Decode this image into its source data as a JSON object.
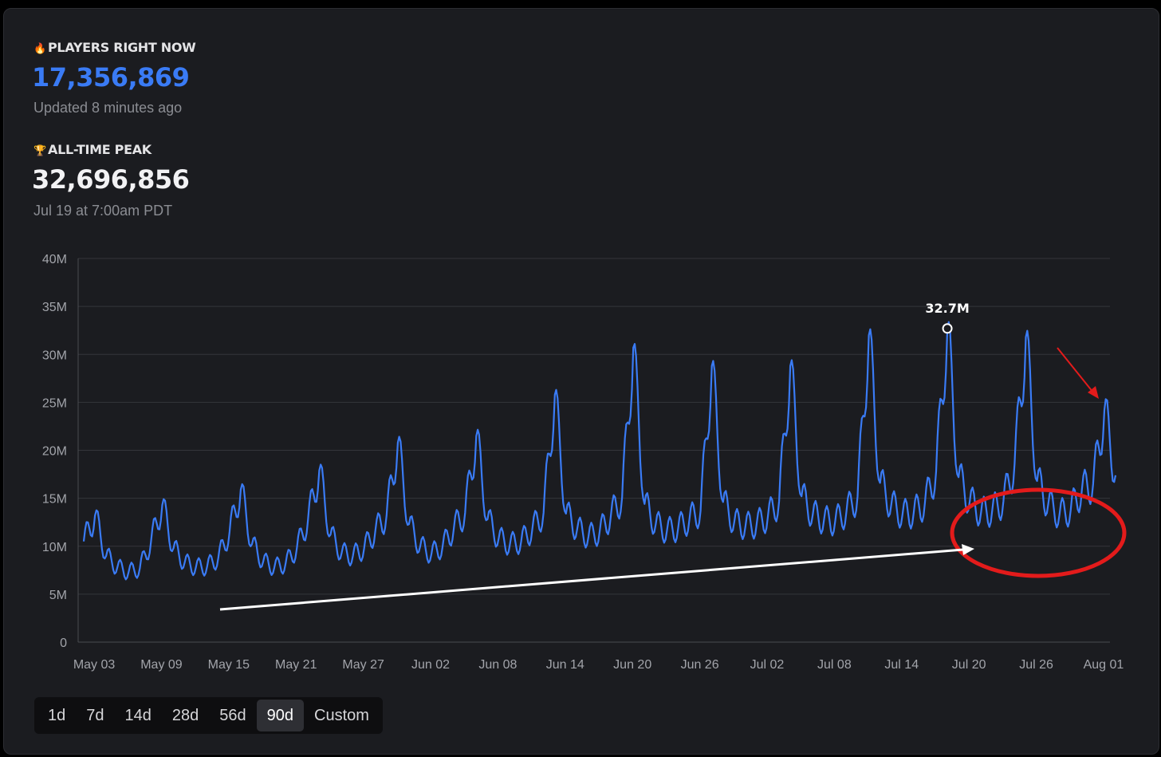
{
  "current": {
    "label": "PLAYERS RIGHT NOW",
    "icon": "flame-icon",
    "value": "17,356,869",
    "value_color": "#3a7bf5",
    "updated": "Updated 8 minutes ago"
  },
  "peak": {
    "label": "ALL-TIME PEAK",
    "icon": "trophy-icon",
    "value": "32,696,856",
    "date": "Jul 19 at 7:00am PDT"
  },
  "range_buttons": [
    "1d",
    "7d",
    "14d",
    "28d",
    "56d",
    "90d",
    "Custom"
  ],
  "active_range": "90d",
  "annotations": {
    "peak_label": "32.7M",
    "red_color": "#e31b1b",
    "white_color": "#ffffff"
  },
  "chart_data": {
    "type": "line",
    "color": "#3a7bf5",
    "xlim": [
      "2025-05-02",
      "2025-08-02"
    ],
    "x_ticks": [
      "May 03",
      "May 09",
      "May 15",
      "May 21",
      "May 27",
      "Jun 02",
      "Jun 08",
      "Jun 14",
      "Jun 20",
      "Jun 26",
      "Jul 02",
      "Jul 08",
      "Jul 14",
      "Jul 20",
      "Jul 26",
      "Aug 01"
    ],
    "y_ticks": [
      "0",
      "5M",
      "10M",
      "15M",
      "20M",
      "25M",
      "30M",
      "35M",
      "40M"
    ],
    "ylim": [
      0,
      40000000
    ],
    "grid": true,
    "series": [
      {
        "points": [
          [
            "May 02",
            10500000
          ],
          [
            "May 03",
            13200000
          ],
          [
            "May 04",
            9000000
          ],
          [
            "May 05",
            7800000
          ],
          [
            "May 06",
            7300000
          ],
          [
            "May 07",
            7700000
          ],
          [
            "May 08",
            10500000
          ],
          [
            "May 09",
            14300000
          ],
          [
            "May 10",
            9800000
          ],
          [
            "May 11",
            8300000
          ],
          [
            "May 12",
            7800000
          ],
          [
            "May 13",
            7900000
          ],
          [
            "May 14",
            8800000
          ],
          [
            "May 15",
            11500000
          ],
          [
            "May 16",
            15900000
          ],
          [
            "May 17",
            10200000
          ],
          [
            "May 18",
            8400000
          ],
          [
            "May 19",
            7800000
          ],
          [
            "May 20",
            8200000
          ],
          [
            "May 21",
            9800000
          ],
          [
            "May 22",
            12800000
          ],
          [
            "May 23",
            17900000
          ],
          [
            "May 24",
            11200000
          ],
          [
            "May 25",
            9300000
          ],
          [
            "May 26",
            9000000
          ],
          [
            "May 27",
            9800000
          ],
          [
            "May 28",
            11600000
          ],
          [
            "May 29",
            13200000
          ],
          [
            "May 30",
            20800000
          ],
          [
            "May 31",
            12300000
          ],
          [
            "Jun 01",
            10000000
          ],
          [
            "Jun 02",
            9200000
          ],
          [
            "Jun 03",
            10000000
          ],
          [
            "Jun 04",
            11900000
          ],
          [
            "Jun 05",
            13500000
          ],
          [
            "Jun 06",
            21500000
          ],
          [
            "Jun 07",
            12800000
          ],
          [
            "Jun 08",
            10800000
          ],
          [
            "Jun 09",
            10200000
          ],
          [
            "Jun 10",
            10500000
          ],
          [
            "Jun 11",
            11800000
          ],
          [
            "Jun 12",
            13500000
          ],
          [
            "Jun 13",
            25800000
          ],
          [
            "Jun 14",
            13400000
          ],
          [
            "Jun 15",
            11800000
          ],
          [
            "Jun 16",
            11000000
          ],
          [
            "Jun 17",
            11500000
          ],
          [
            "Jun 18",
            13200000
          ],
          [
            "Jun 19",
            15100000
          ],
          [
            "Jun 20",
            30700000
          ],
          [
            "Jun 21",
            14400000
          ],
          [
            "Jun 22",
            12300000
          ],
          [
            "Jun 23",
            11600000
          ],
          [
            "Jun 24",
            11900000
          ],
          [
            "Jun 25",
            12800000
          ],
          [
            "Jun 26",
            13700000
          ],
          [
            "Jun 27",
            28800000
          ],
          [
            "Jun 28",
            14600000
          ],
          [
            "Jun 29",
            12500000
          ],
          [
            "Jun 30",
            12100000
          ],
          [
            "Jul 01",
            12300000
          ],
          [
            "Jul 02",
            13100000
          ],
          [
            "Jul 03",
            14700000
          ],
          [
            "Jul 04",
            28800000
          ],
          [
            "Jul 05",
            15200000
          ],
          [
            "Jul 06",
            13300000
          ],
          [
            "Jul 07",
            12700000
          ],
          [
            "Jul 08",
            12600000
          ],
          [
            "Jul 09",
            13600000
          ],
          [
            "Jul 10",
            15200000
          ],
          [
            "Jul 11",
            32000000
          ],
          [
            "Jul 12",
            16600000
          ],
          [
            "Jul 13",
            14300000
          ],
          [
            "Jul 14",
            13300000
          ],
          [
            "Jul 15",
            13500000
          ],
          [
            "Jul 16",
            14500000
          ],
          [
            "Jul 17",
            17800000
          ],
          [
            "Jul 18",
            32700000
          ],
          [
            "Jul 19",
            17200000
          ],
          [
            "Jul 20",
            14700000
          ],
          [
            "Jul 21",
            13500000
          ],
          [
            "Jul 22",
            13700000
          ],
          [
            "Jul 23",
            14700000
          ],
          [
            "Jul 24",
            18600000
          ],
          [
            "Jul 25",
            31800000
          ],
          [
            "Jul 26",
            16800000
          ],
          [
            "Jul 27",
            14400000
          ],
          [
            "Jul 28",
            13300000
          ],
          [
            "Jul 29",
            13800000
          ],
          [
            "Jul 30",
            15900000
          ],
          [
            "Jul 31",
            16500000
          ],
          [
            "Aug 01",
            24200000
          ],
          [
            "Aug 02",
            17400000
          ]
        ]
      }
    ],
    "peak_marker": {
      "x": "Jul 18",
      "y": 32700000,
      "label": "32.7M"
    }
  }
}
